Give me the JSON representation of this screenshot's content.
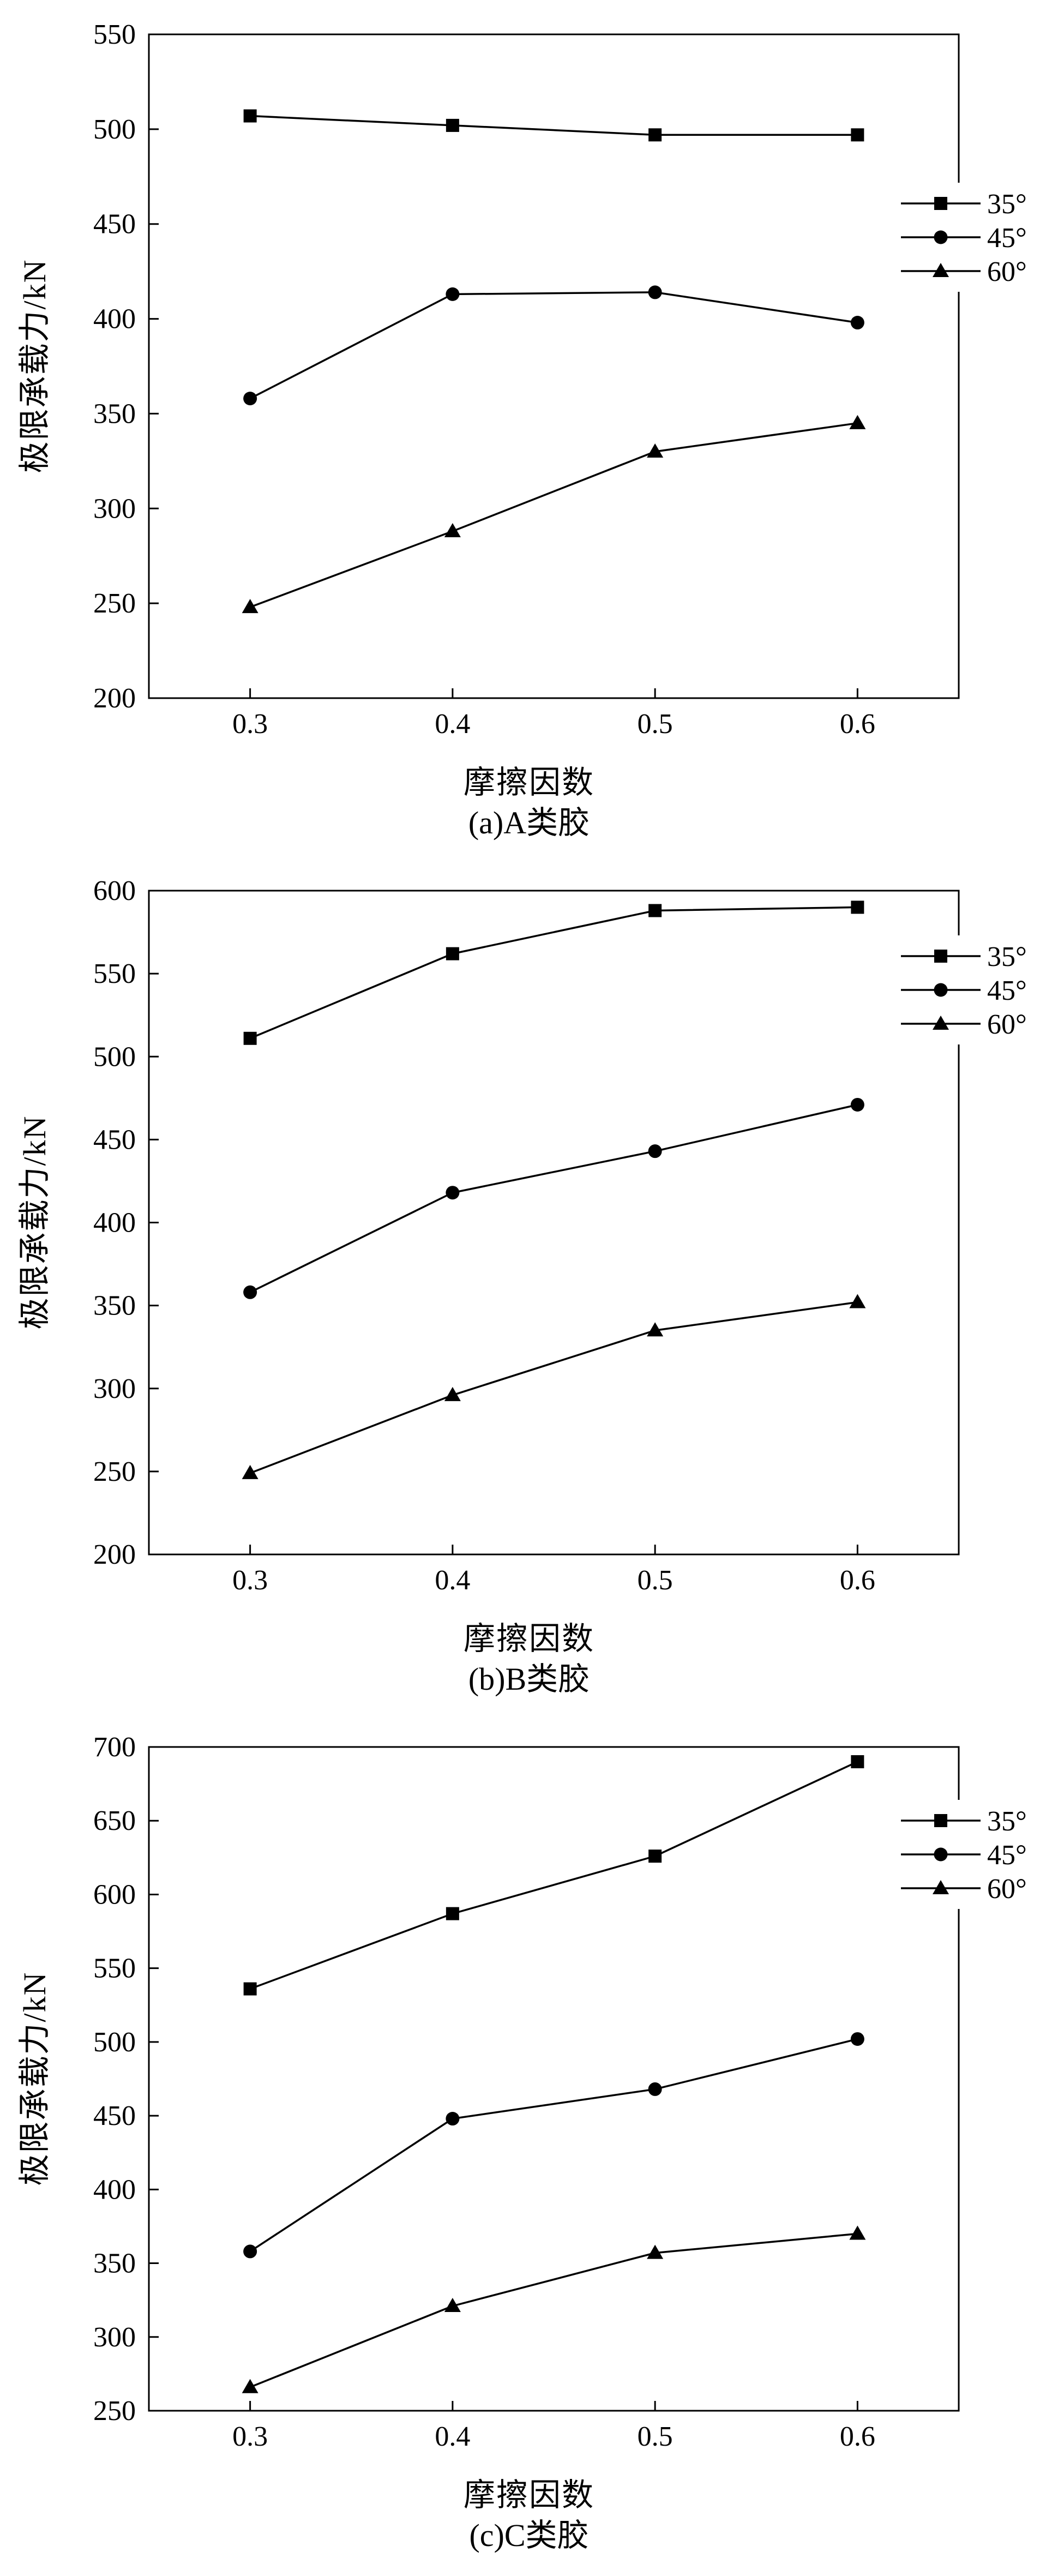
{
  "page": {
    "background": "#ffffff",
    "line_color": "#000000"
  },
  "chart_data": [
    {
      "type": "line",
      "caption": "(a)A类胶",
      "xlabel": "摩擦因数",
      "ylabel": "极限承载力/kN",
      "x": [
        0.3,
        0.4,
        0.5,
        0.6
      ],
      "xlim": [
        0.25,
        0.65
      ],
      "ylim": [
        200,
        550
      ],
      "ytick_step": 50,
      "grid": false,
      "legend_position": "right",
      "series": [
        {
          "name": "35°",
          "marker": "square",
          "color": "#000000",
          "values": [
            507,
            502,
            497,
            497
          ]
        },
        {
          "name": "45°",
          "marker": "circle",
          "color": "#000000",
          "values": [
            358,
            413,
            414,
            398
          ]
        },
        {
          "name": "60°",
          "marker": "triangle",
          "color": "#000000",
          "values": [
            248,
            288,
            330,
            345
          ]
        }
      ]
    },
    {
      "type": "line",
      "caption": "(b)B类胶",
      "xlabel": "摩擦因数",
      "ylabel": "极限承载力/kN",
      "x": [
        0.3,
        0.4,
        0.5,
        0.6
      ],
      "xlim": [
        0.25,
        0.65
      ],
      "ylim": [
        200,
        600
      ],
      "ytick_step": 50,
      "grid": false,
      "legend_position": "right",
      "series": [
        {
          "name": "35°",
          "marker": "square",
          "color": "#000000",
          "values": [
            511,
            562,
            588,
            590
          ]
        },
        {
          "name": "45°",
          "marker": "circle",
          "color": "#000000",
          "values": [
            358,
            418,
            443,
            471
          ]
        },
        {
          "name": "60°",
          "marker": "triangle",
          "color": "#000000",
          "values": [
            249,
            296,
            335,
            352
          ]
        }
      ]
    },
    {
      "type": "line",
      "caption": "(c)C类胶",
      "xlabel": "摩擦因数",
      "ylabel": "极限承载力/kN",
      "x": [
        0.3,
        0.4,
        0.5,
        0.6
      ],
      "xlim": [
        0.25,
        0.65
      ],
      "ylim": [
        250,
        700
      ],
      "ytick_step": 50,
      "grid": false,
      "legend_position": "right",
      "series": [
        {
          "name": "35°",
          "marker": "square",
          "color": "#000000",
          "values": [
            536,
            587,
            626,
            690
          ]
        },
        {
          "name": "45°",
          "marker": "circle",
          "color": "#000000",
          "values": [
            358,
            448,
            468,
            502
          ]
        },
        {
          "name": "60°",
          "marker": "triangle",
          "color": "#000000",
          "values": [
            266,
            321,
            357,
            370
          ]
        }
      ]
    }
  ]
}
